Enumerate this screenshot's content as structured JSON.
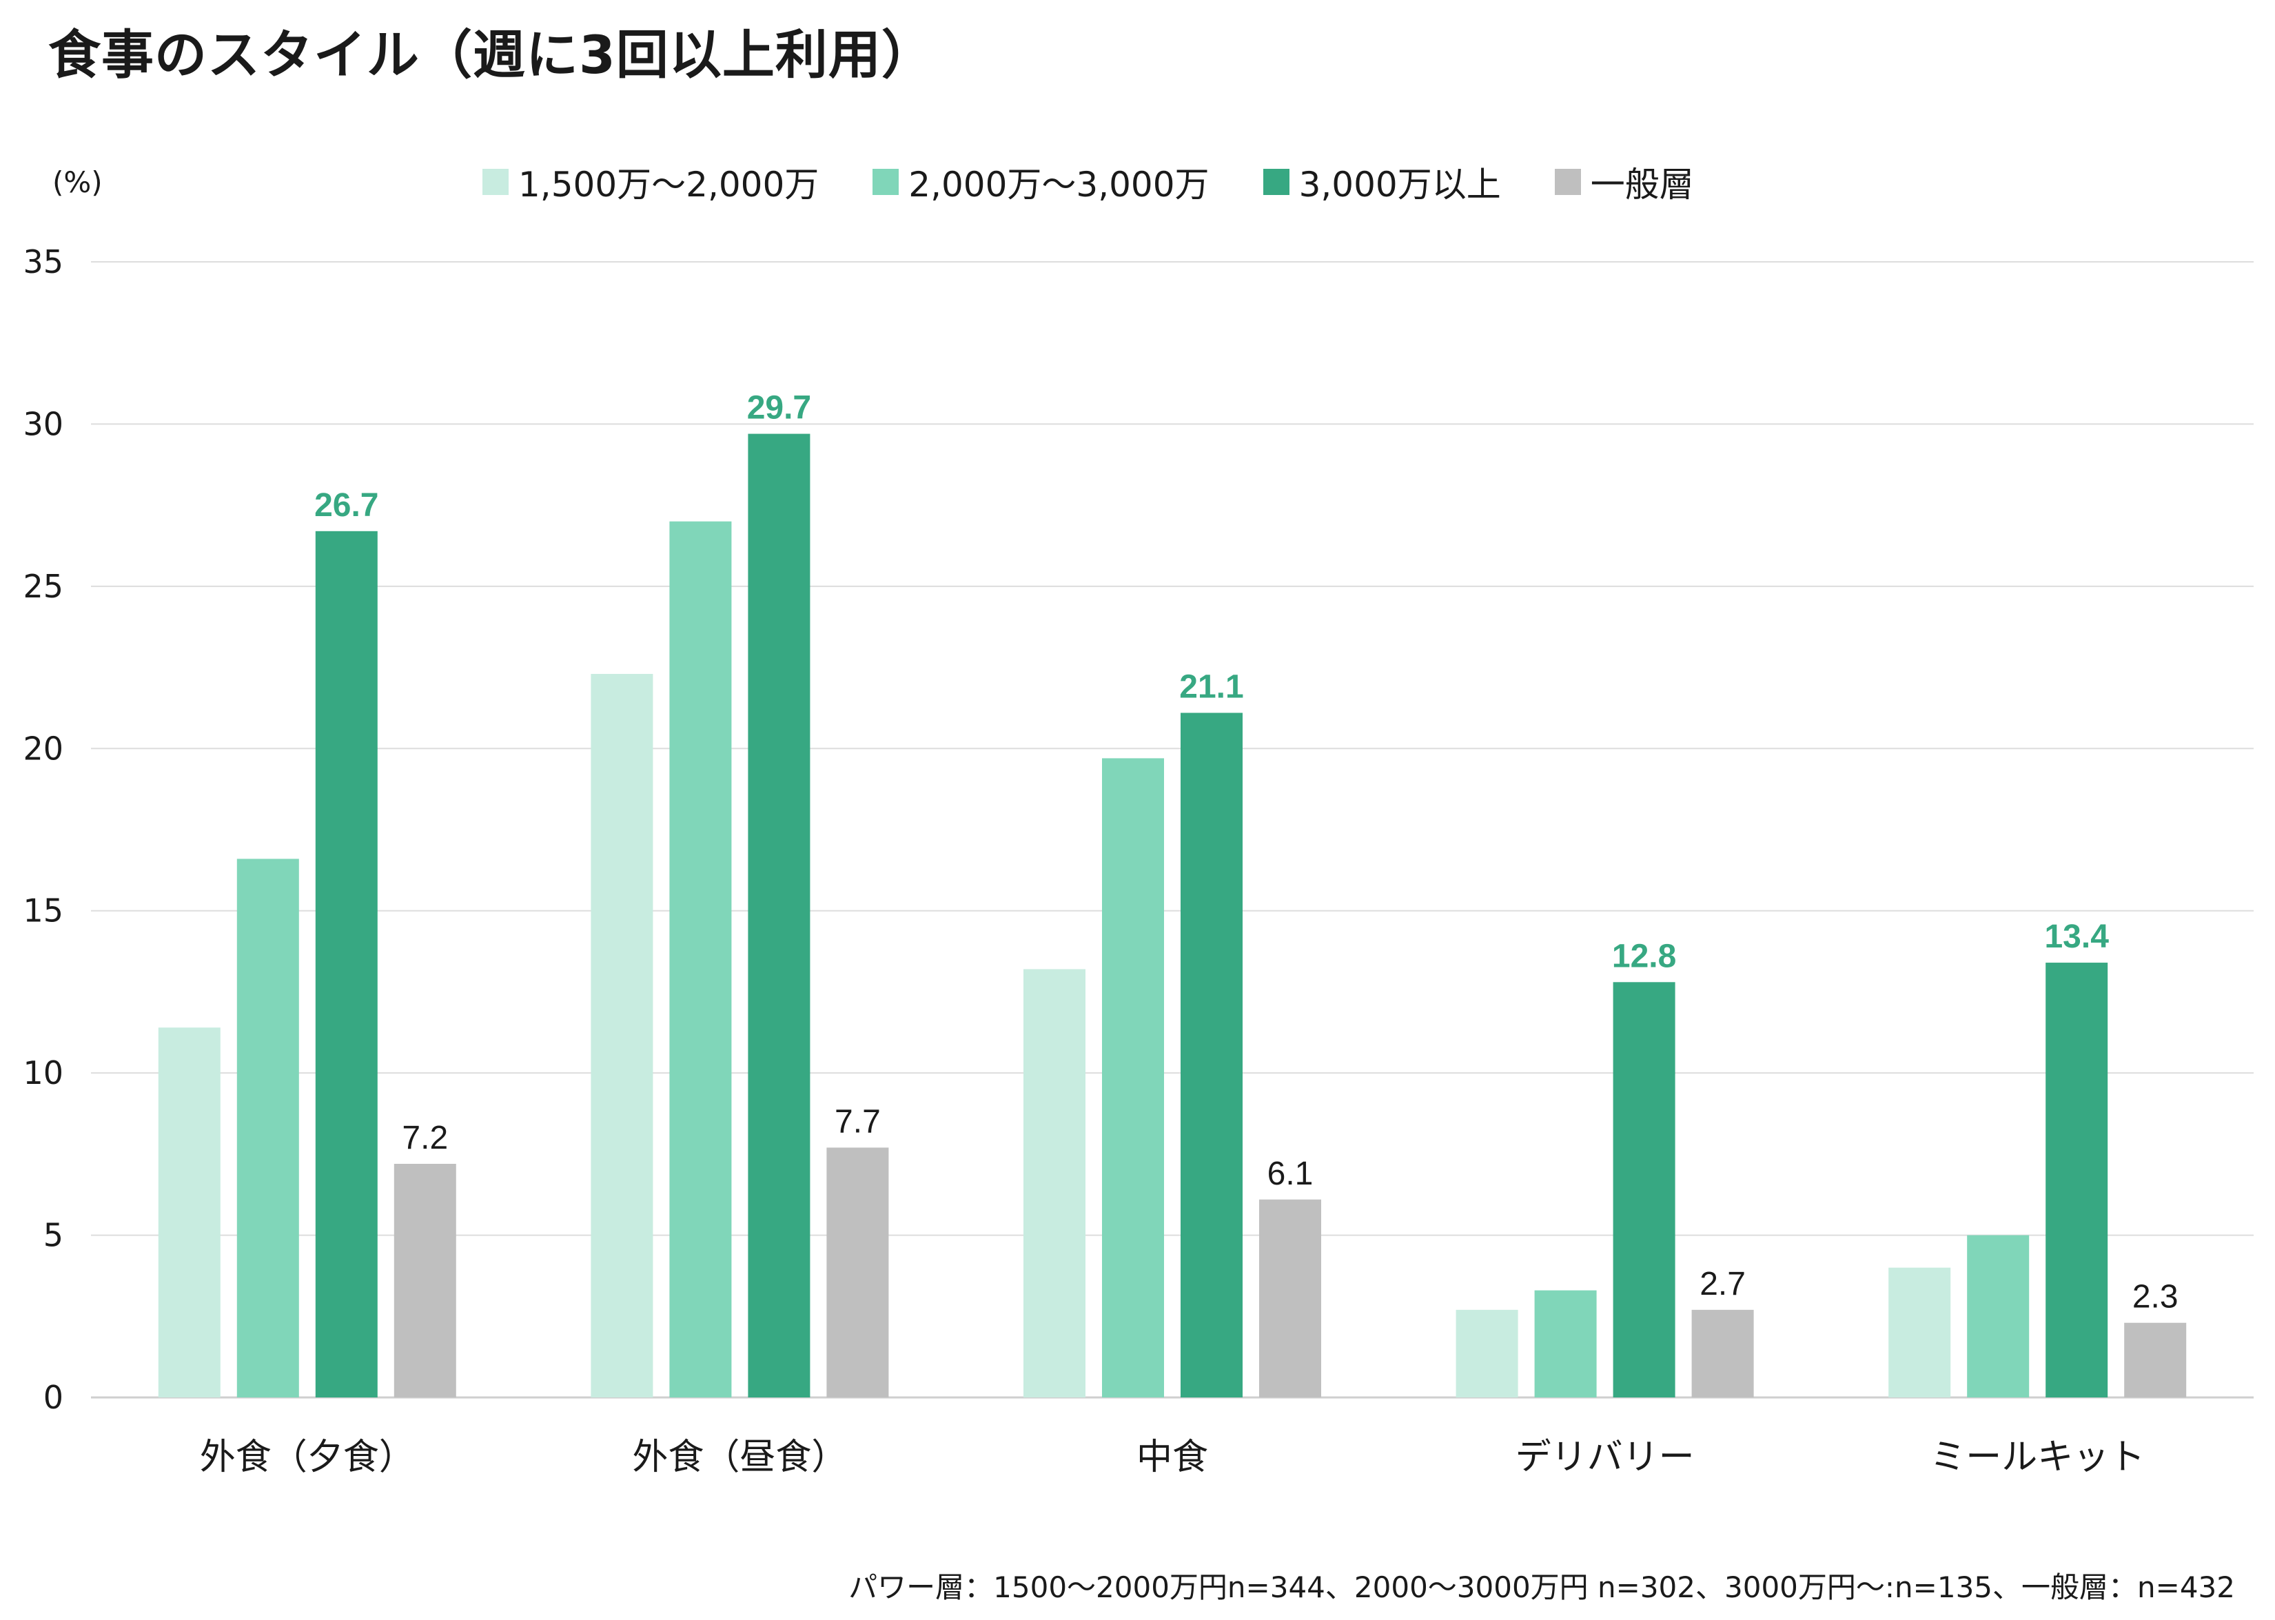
{
  "title": "食事のスタイル（週に3回以上利用）",
  "unit_label": "(%)",
  "footnote": "パワー層：1500～2000万円n=344、2000～3000万円 n=302、3000万円～:n=135、一般層：n=432",
  "chart_data": {
    "type": "bar",
    "title": "食事のスタイル（週に3回以上利用）",
    "xlabel": "",
    "ylabel": "(%)",
    "ylim": [
      0,
      35
    ],
    "yticks": [
      0,
      5,
      10,
      15,
      20,
      25,
      30,
      35
    ],
    "grid": true,
    "legend_position": "top",
    "categories": [
      "外食（夕食）",
      "外食（昼食）",
      "中食",
      "デリバリー",
      "ミールキット"
    ],
    "series": [
      {
        "name": "1,500万～2,000万",
        "color": "#c8ece0",
        "values": [
          11.4,
          22.3,
          13.2,
          2.7,
          4.0
        ],
        "labels": [
          null,
          null,
          null,
          null,
          null
        ]
      },
      {
        "name": "2,000万～3,000万",
        "color": "#80d6b9",
        "values": [
          16.6,
          27.0,
          19.7,
          3.3,
          5.0
        ],
        "labels": [
          null,
          null,
          null,
          null,
          null
        ]
      },
      {
        "name": "3,000万以上",
        "color": "#37a882",
        "values": [
          26.7,
          29.7,
          21.1,
          12.8,
          13.4
        ],
        "labels": [
          "26.7",
          "29.7",
          "21.1",
          "12.8",
          "13.4"
        ],
        "label_color": "#37a882",
        "label_bold": true
      },
      {
        "name": "一般層",
        "color": "#bfbfbf",
        "values": [
          7.2,
          7.7,
          6.1,
          2.7,
          2.3
        ],
        "labels": [
          "7.2",
          "7.7",
          "6.1",
          "2.7",
          "2.3"
        ],
        "label_color": "#1a1a1a",
        "label_bold": false
      }
    ]
  }
}
